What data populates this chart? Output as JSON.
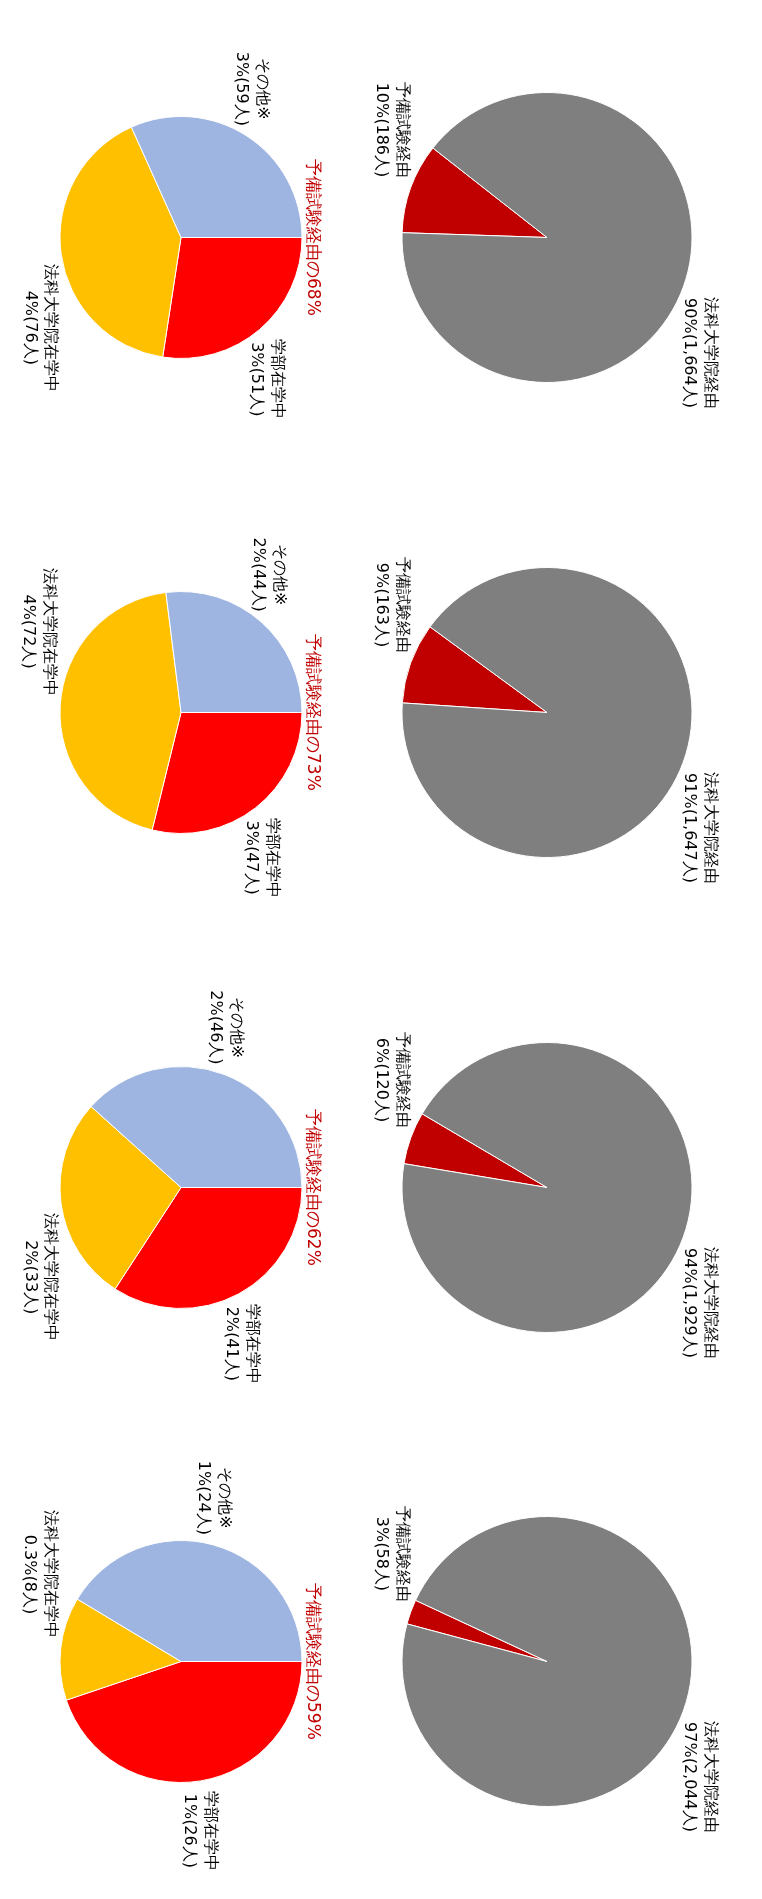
{
  "chart_data": [
    {
      "type": "pie",
      "categories": [
        "予備試験経由",
        "法科大学院経由"
      ],
      "values": [
        186,
        1664
      ],
      "colors": [
        "#c00000",
        "#7f7f7f"
      ],
      "value_labels": [
        "10%(186人)",
        "90%(1,664人)"
      ]
    },
    {
      "type": "pie",
      "categories": [
        "学部在学中",
        "法科大学院在学中",
        "その他※"
      ],
      "values": [
        51,
        76,
        59
      ],
      "colors": [
        "#ff0000",
        "#ffc000",
        "#9db5e0"
      ],
      "value_labels": [
        "3%(51人)",
        "4%(76人)",
        "3%(59人)"
      ],
      "annotations": [
        "予備試験経由の68%"
      ]
    },
    {
      "type": "pie",
      "categories": [
        "予備試験経由",
        "法科大学院経由"
      ],
      "values": [
        163,
        1647
      ],
      "colors": [
        "#c00000",
        "#7f7f7f"
      ],
      "value_labels": [
        "9%(163人)",
        "91%(1,647人)"
      ]
    },
    {
      "type": "pie",
      "categories": [
        "学部在学中",
        "法科大学院在学中",
        "その他※"
      ],
      "values": [
        47,
        72,
        44
      ],
      "colors": [
        "#ff0000",
        "#ffc000",
        "#9db5e0"
      ],
      "value_labels": [
        "3%(47人)",
        "4%(72人)",
        "2%(44人)"
      ],
      "annotations": [
        "予備試験経由の73%"
      ]
    },
    {
      "type": "pie",
      "categories": [
        "予備試験経由",
        "法科大学院経由"
      ],
      "values": [
        120,
        1929
      ],
      "colors": [
        "#c00000",
        "#7f7f7f"
      ],
      "value_labels": [
        "6%(120人)",
        "94%(1,929人)"
      ]
    },
    {
      "type": "pie",
      "categories": [
        "学部在学中",
        "法科大学院在学中",
        "その他※"
      ],
      "values": [
        41,
        33,
        46
      ],
      "colors": [
        "#ff0000",
        "#ffc000",
        "#9db5e0"
      ],
      "value_labels": [
        "2%(41人)",
        "2%(33人)",
        "2%(46人)"
      ],
      "annotations": [
        "予備試験経由の62%"
      ]
    },
    {
      "type": "pie",
      "categories": [
        "予備試験経由",
        "法科大学院経由"
      ],
      "values": [
        58,
        2044
      ],
      "colors": [
        "#c00000",
        "#7f7f7f"
      ],
      "value_labels": [
        "3%(58人)",
        "97%(2,044人)"
      ]
    },
    {
      "type": "pie",
      "categories": [
        "学部在学中",
        "法科大学院在学中",
        "その他※"
      ],
      "values": [
        26,
        8,
        24
      ],
      "colors": [
        "#ff0000",
        "#ffc000",
        "#9db5e0"
      ],
      "value_labels": [
        "1%(26人)",
        "0.3%(8人)",
        "1%(24人)"
      ],
      "annotations": [
        "予備試験経由の59%"
      ]
    }
  ]
}
